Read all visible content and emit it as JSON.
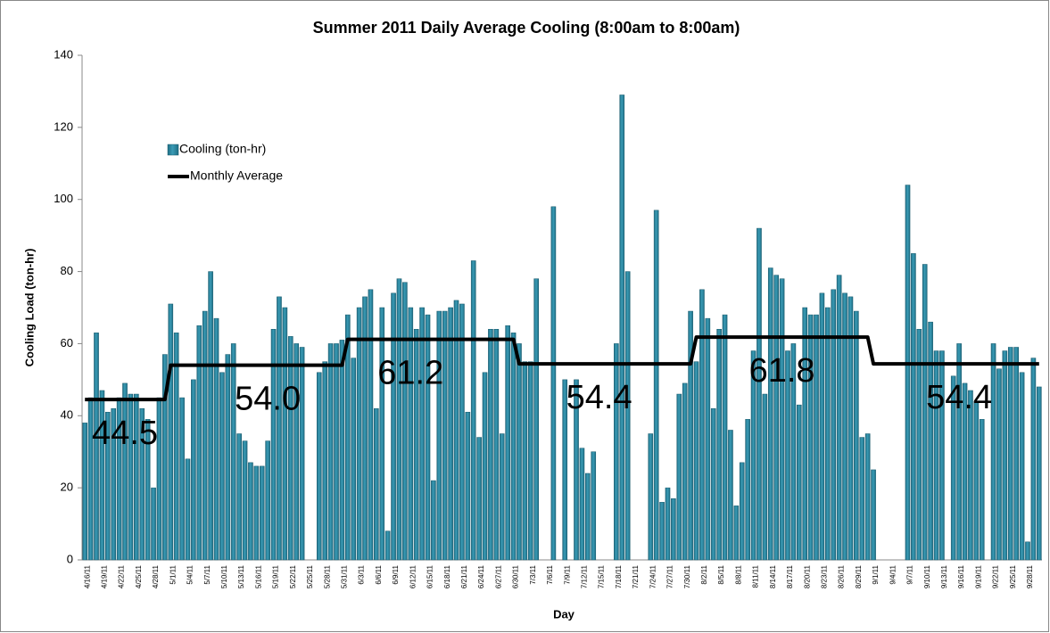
{
  "chart_data": {
    "type": "bar",
    "title": "Summer 2011 Daily Average Cooling (8:00am to 8:00am)",
    "x_label": "Day",
    "y_label": "Cooling Load (ton-hr)",
    "categories": [
      "4/16/11",
      null,
      null,
      "4/19/11",
      null,
      null,
      "4/22/11",
      null,
      null,
      "4/25/11",
      null,
      null,
      "4/28/11",
      null,
      null,
      "5/1/11",
      null,
      null,
      "5/4/11",
      null,
      null,
      "5/7/11",
      null,
      null,
      "5/10/11",
      null,
      null,
      "5/13/11",
      null,
      null,
      "5/16/11",
      null,
      null,
      "5/19/11",
      null,
      null,
      "5/22/11",
      null,
      null,
      "5/25/11",
      null,
      null,
      "5/28/11",
      null,
      null,
      "5/31/11",
      null,
      null,
      "6/3/11",
      null,
      null,
      "6/6/11",
      null,
      null,
      "6/9/11",
      null,
      null,
      "6/12/11",
      null,
      null,
      "6/15/11",
      null,
      null,
      "6/18/11",
      null,
      null,
      "6/21/11",
      null,
      null,
      "6/24/11",
      null,
      null,
      "6/27/11",
      null,
      null,
      "6/30/11",
      null,
      null,
      "7/3/11",
      null,
      null,
      "7/6/11",
      null,
      null,
      "7/9/11",
      null,
      null,
      "7/12/11",
      null,
      null,
      "7/15/11",
      null,
      null,
      "7/18/11",
      null,
      null,
      "7/21/11",
      null,
      null,
      "7/24/11",
      null,
      null,
      "7/27/11",
      null,
      null,
      "7/30/11",
      null,
      null,
      "8/2/11",
      null,
      null,
      "8/5/11",
      null,
      null,
      "8/8/11",
      null,
      null,
      "8/11/11",
      null,
      null,
      "8/14/11",
      null,
      null,
      "8/17/11",
      null,
      null,
      "8/20/11",
      null,
      null,
      "8/23/11",
      null,
      null,
      "8/26/11",
      null,
      null,
      "8/29/11",
      null,
      null,
      "9/1/11",
      null,
      null,
      "9/4/11",
      null,
      null,
      "9/7/11",
      null,
      null,
      "9/10/11",
      null,
      null,
      "9/13/11",
      null,
      null,
      "9/16/11",
      null,
      null,
      "9/19/11",
      null,
      null,
      "9/22/11",
      null,
      null,
      "9/25/11",
      null,
      null,
      "9/28/11",
      null,
      null
    ],
    "series": [
      {
        "name": "Cooling (ton-hr)",
        "type": "bar",
        "color": "#3a9bb5",
        "values": [
          38,
          45,
          63,
          47,
          41,
          42,
          45,
          49,
          46,
          46,
          42,
          39,
          20,
          45,
          57,
          71,
          63,
          45,
          28,
          50,
          65,
          69,
          80,
          67,
          52,
          57,
          60,
          35,
          33,
          27,
          26,
          26,
          33,
          64,
          73,
          70,
          62,
          60,
          59,
          null,
          null,
          52,
          55,
          60,
          60,
          61,
          68,
          56,
          70,
          73,
          75,
          42,
          70,
          8,
          74,
          78,
          77,
          70,
          64,
          70,
          68,
          22,
          69,
          69,
          70,
          72,
          71,
          41,
          83,
          34,
          52,
          64,
          64,
          35,
          65,
          63,
          60,
          55,
          55,
          78,
          null,
          null,
          98,
          null,
          50,
          null,
          50,
          31,
          24,
          30,
          null,
          null,
          null,
          60,
          129,
          80,
          null,
          null,
          null,
          35,
          97,
          16,
          20,
          17,
          46,
          49,
          69,
          55,
          75,
          67,
          42,
          64,
          68,
          36,
          15,
          27,
          39,
          58,
          92,
          46,
          81,
          79,
          78,
          58,
          60,
          43,
          70,
          68,
          68,
          74,
          70,
          75,
          79,
          74,
          73,
          69,
          34,
          35,
          25,
          null,
          null,
          null,
          null,
          null,
          104,
          85,
          64,
          82,
          66,
          58,
          58,
          null,
          51,
          60,
          49,
          47,
          44,
          39,
          null,
          60,
          53,
          58,
          59,
          59,
          52,
          5,
          56,
          48
        ]
      },
      {
        "name": "Monthly Average",
        "type": "line",
        "color": "#000000",
        "values": [
          44.5,
          44.5,
          44.5,
          44.5,
          44.5,
          44.5,
          44.5,
          44.5,
          44.5,
          44.5,
          44.5,
          44.5,
          44.5,
          44.5,
          44.5,
          54,
          54,
          54,
          54,
          54,
          54,
          54,
          54,
          54,
          54,
          54,
          54,
          54,
          54,
          54,
          54,
          54,
          54,
          54,
          54,
          54,
          54,
          54,
          54,
          54,
          54,
          54,
          54,
          54,
          54,
          54,
          61.2,
          61.2,
          61.2,
          61.2,
          61.2,
          61.2,
          61.2,
          61.2,
          61.2,
          61.2,
          61.2,
          61.2,
          61.2,
          61.2,
          61.2,
          61.2,
          61.2,
          61.2,
          61.2,
          61.2,
          61.2,
          61.2,
          61.2,
          61.2,
          61.2,
          61.2,
          61.2,
          61.2,
          61.2,
          61.2,
          54.4,
          54.4,
          54.4,
          54.4,
          54.4,
          54.4,
          54.4,
          54.4,
          54.4,
          54.4,
          54.4,
          54.4,
          54.4,
          54.4,
          54.4,
          54.4,
          54.4,
          54.4,
          54.4,
          54.4,
          54.4,
          54.4,
          54.4,
          54.4,
          54.4,
          54.4,
          54.4,
          54.4,
          54.4,
          54.4,
          54.4,
          61.8,
          61.8,
          61.8,
          61.8,
          61.8,
          61.8,
          61.8,
          61.8,
          61.8,
          61.8,
          61.8,
          61.8,
          61.8,
          61.8,
          61.8,
          61.8,
          61.8,
          61.8,
          61.8,
          61.8,
          61.8,
          61.8,
          61.8,
          61.8,
          61.8,
          61.8,
          61.8,
          61.8,
          61.8,
          61.8,
          61.8,
          54.4,
          54.4,
          54.4,
          54.4,
          54.4,
          54.4,
          54.4,
          54.4,
          54.4,
          54.4,
          54.4,
          54.4,
          54.4,
          54.4,
          54.4,
          54.4,
          54.4,
          54.4,
          54.4,
          54.4,
          54.4,
          54.4,
          54.4,
          54.4,
          54.4,
          54.4,
          54.4,
          54.4,
          54.4,
          54.4
        ],
        "value_labels": [
          null,
          null,
          null,
          null,
          null,
          null,
          null,
          "44.5",
          null,
          null,
          null,
          null,
          null,
          null,
          null,
          null,
          null,
          null,
          null,
          null,
          null,
          null,
          null,
          null,
          null,
          null,
          null,
          null,
          null,
          null,
          null,
          null,
          "54.0",
          null,
          null,
          null,
          null,
          null,
          null,
          null,
          null,
          null,
          null,
          null,
          null,
          null,
          null,
          null,
          null,
          null,
          null,
          null,
          null,
          null,
          null,
          null,
          null,
          "61.2",
          null,
          null,
          null,
          null,
          null,
          null,
          null,
          null,
          null,
          null,
          null,
          null,
          null,
          null,
          null,
          null,
          null,
          null,
          null,
          null,
          null,
          null,
          null,
          null,
          null,
          null,
          null,
          null,
          null,
          null,
          null,
          null,
          "54.4",
          null,
          null,
          null,
          null,
          null,
          null,
          null,
          null,
          null,
          null,
          null,
          null,
          null,
          null,
          null,
          null,
          null,
          null,
          null,
          null,
          null,
          null,
          null,
          null,
          null,
          null,
          null,
          null,
          null,
          null,
          null,
          "61.8",
          null,
          null,
          null,
          null,
          null,
          null,
          null,
          null,
          null,
          null,
          null,
          null,
          null,
          null,
          null,
          null,
          null,
          null,
          null,
          null,
          null,
          null,
          null,
          null,
          null,
          null,
          null,
          null,
          null,
          null,
          "54.4",
          null,
          null,
          null,
          null,
          null,
          null,
          null,
          null,
          null,
          null,
          null,
          null,
          null,
          null
        ]
      }
    ],
    "ylim": [
      0,
      140
    ],
    "yticks": [
      0,
      20,
      40,
      60,
      80,
      100,
      120,
      140
    ],
    "grid": false,
    "legend": "upper left"
  }
}
